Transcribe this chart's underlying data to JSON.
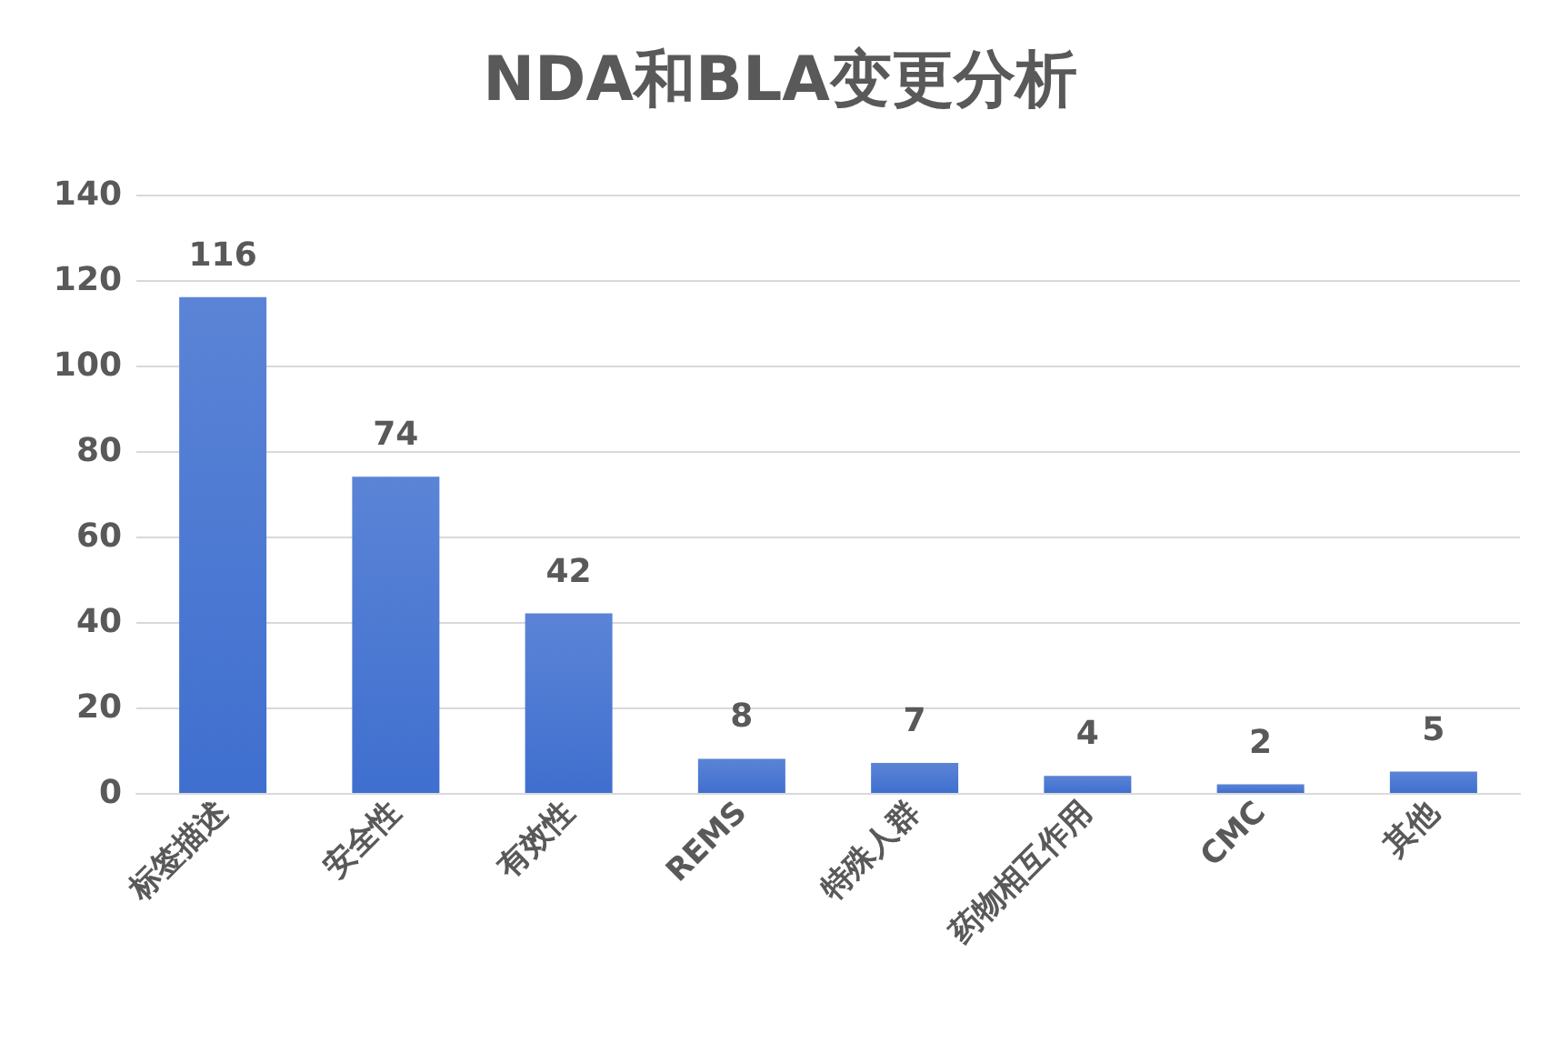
{
  "chart_data": {
    "type": "bar",
    "title": "NDA和BLA变更分析",
    "categories": [
      "标签描述",
      "安全性",
      "有效性",
      "REMS",
      "特殊人群",
      "药物相互作用",
      "CMC",
      "其他"
    ],
    "values": [
      116,
      74,
      42,
      8,
      7,
      4,
      2,
      5
    ],
    "color": "#3f6fcf",
    "ylim": [
      0,
      140
    ],
    "yticks": [
      0,
      20,
      40,
      60,
      80,
      100,
      120,
      140
    ],
    "grid": "y",
    "data_labels": true
  }
}
